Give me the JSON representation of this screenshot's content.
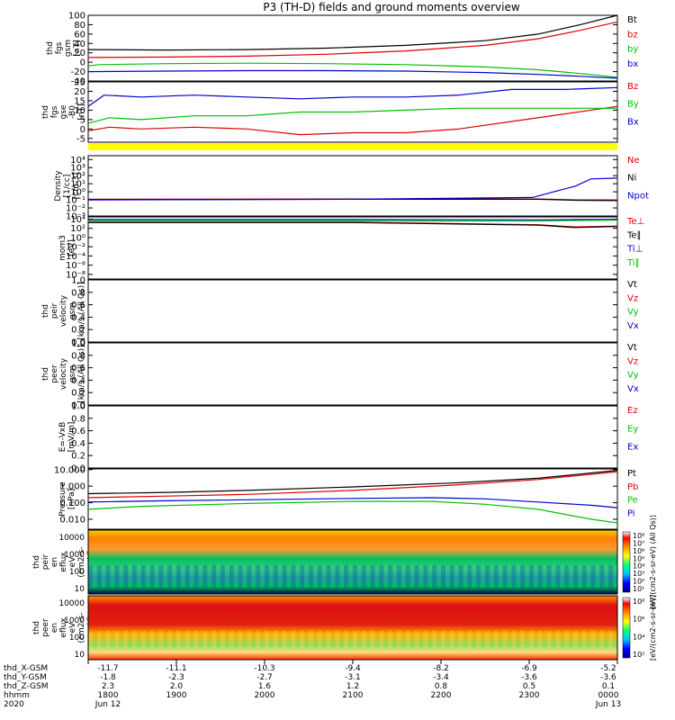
{
  "title": "P3 (TH-D) fields and ground moments overview",
  "chart_data": [
    {
      "type": "line",
      "ylabel": [
        "thd",
        "fgs",
        "gsm",
        "[nT]"
      ],
      "ylim": [
        -40,
        100
      ],
      "yticks": [
        "100",
        "80",
        "60",
        "40",
        "20",
        "0",
        "-20",
        "-40"
      ],
      "yvals": [
        100,
        80,
        60,
        40,
        20,
        0,
        -20,
        -40
      ],
      "series": [
        {
          "name": "Bt",
          "color": "#000000",
          "values": [
            [
              0,
              27
            ],
            [
              0.15,
              26
            ],
            [
              0.3,
              27
            ],
            [
              0.45,
              30
            ],
            [
              0.6,
              36
            ],
            [
              0.75,
              46
            ],
            [
              0.85,
              60
            ],
            [
              0.93,
              80
            ],
            [
              1,
              100
            ]
          ]
        },
        {
          "name": "bz",
          "color": "#e00000",
          "values": [
            [
              0,
              10
            ],
            [
              0.15,
              11
            ],
            [
              0.3,
              13
            ],
            [
              0.45,
              17
            ],
            [
              0.6,
              24
            ],
            [
              0.75,
              36
            ],
            [
              0.85,
              50
            ],
            [
              0.93,
              68
            ],
            [
              1,
              86
            ]
          ]
        },
        {
          "name": "by",
          "color": "#00c000",
          "values": [
            [
              0,
              -8
            ],
            [
              0.02,
              -5
            ],
            [
              0.15,
              -3
            ],
            [
              0.3,
              -2
            ],
            [
              0.45,
              -3
            ],
            [
              0.6,
              -5
            ],
            [
              0.75,
              -10
            ],
            [
              0.85,
              -16
            ],
            [
              0.93,
              -24
            ],
            [
              1,
              -32
            ]
          ]
        },
        {
          "name": "bx",
          "color": "#0000d0",
          "values": [
            [
              0,
              -20
            ],
            [
              0.15,
              -19
            ],
            [
              0.3,
              -18
            ],
            [
              0.45,
              -18
            ],
            [
              0.6,
              -19
            ],
            [
              0.75,
              -22
            ],
            [
              0.85,
              -26
            ],
            [
              0.93,
              -30
            ],
            [
              1,
              -34
            ]
          ]
        }
      ]
    },
    {
      "type": "line",
      "ylabel": [
        "thd",
        "fgs",
        "gse",
        "-B0",
        "[nT]"
      ],
      "ylim": [
        -7,
        25
      ],
      "yticks": [
        "25",
        "20",
        "15",
        "10",
        "5",
        "0",
        "-5"
      ],
      "yvals": [
        25,
        20,
        15,
        10,
        5,
        0,
        -5
      ],
      "series": [
        {
          "name": "Bz",
          "color": "#e00000",
          "values": [
            [
              0,
              -1
            ],
            [
              0.04,
              1
            ],
            [
              0.1,
              0
            ],
            [
              0.2,
              1
            ],
            [
              0.3,
              0
            ],
            [
              0.4,
              -3
            ],
            [
              0.5,
              -2
            ],
            [
              0.6,
              -2
            ],
            [
              0.7,
              0
            ],
            [
              0.8,
              4
            ],
            [
              0.9,
              8
            ],
            [
              1,
              12
            ]
          ]
        },
        {
          "name": "By",
          "color": "#00c000",
          "values": [
            [
              0,
              3
            ],
            [
              0.04,
              6
            ],
            [
              0.1,
              5
            ],
            [
              0.2,
              7
            ],
            [
              0.3,
              7
            ],
            [
              0.4,
              9
            ],
            [
              0.5,
              9
            ],
            [
              0.6,
              10
            ],
            [
              0.7,
              11
            ],
            [
              0.8,
              11
            ],
            [
              0.9,
              11
            ],
            [
              1,
              11
            ]
          ]
        },
        {
          "name": "Bx",
          "color": "#0000d0",
          "values": [
            [
              0,
              12
            ],
            [
              0.03,
              18
            ],
            [
              0.1,
              17
            ],
            [
              0.2,
              18
            ],
            [
              0.3,
              17
            ],
            [
              0.4,
              16
            ],
            [
              0.5,
              17
            ],
            [
              0.6,
              17
            ],
            [
              0.7,
              18
            ],
            [
              0.8,
              21
            ],
            [
              0.9,
              21
            ],
            [
              1,
              22
            ]
          ]
        }
      ]
    },
    {
      "type": "line",
      "ylabel": [
        "Density",
        "[1/cc]",
        "[cm-3]"
      ],
      "scale": "log",
      "ylim": [
        0.001,
        30000
      ],
      "yticks": [
        "10⁴",
        "10³",
        "10²",
        "10¹",
        "10⁰",
        "10⁻¹",
        "10⁻²",
        "10⁻³"
      ],
      "yvals": [
        10000,
        1000,
        100,
        10,
        1,
        0.1,
        0.01,
        0.001
      ],
      "series": [
        {
          "name": "Ne",
          "color": "#e00000",
          "values": [
            [
              0,
              0.12
            ],
            [
              0.5,
              0.13
            ],
            [
              0.85,
              0.13
            ],
            [
              0.92,
              0.1
            ],
            [
              1,
              0.1
            ]
          ]
        },
        {
          "name": "Ni",
          "color": "#000000",
          "values": [
            [
              0,
              0.11
            ],
            [
              0.5,
              0.12
            ],
            [
              0.85,
              0.12
            ],
            [
              0.92,
              0.09
            ],
            [
              1,
              0.08
            ]
          ]
        },
        {
          "name": "Npot",
          "color": "#0000d0",
          "values": [
            [
              0,
              0.1
            ],
            [
              0.5,
              0.12
            ],
            [
              0.84,
              0.2
            ],
            [
              0.88,
              1
            ],
            [
              0.92,
              5
            ],
            [
              0.95,
              40
            ],
            [
              1,
              50
            ]
          ]
        }
      ]
    },
    {
      "type": "line",
      "ylabel": [
        "mom3",
        "[eV]"
      ],
      "scale": "log",
      "ylim": [
        1e-09,
        30000
      ],
      "yticks": [
        "10⁴",
        "10²",
        "10⁰",
        "10⁻²",
        "10⁻⁴",
        "10⁻⁶",
        "10⁻⁸"
      ],
      "yvals": [
        10000,
        100,
        1,
        0.01,
        0.0001,
        1e-06,
        1e-08
      ],
      "series": [
        {
          "name": "Te⊥",
          "color": "#e00000",
          "values": [
            [
              0,
              2000
            ],
            [
              0.5,
              2000
            ],
            [
              0.85,
              600
            ],
            [
              0.92,
              200
            ],
            [
              1,
              300
            ]
          ]
        },
        {
          "name": "Te∥",
          "color": "#000000",
          "values": [
            [
              0,
              1800
            ],
            [
              0.5,
              1800
            ],
            [
              0.85,
              500
            ],
            [
              0.92,
              150
            ],
            [
              1,
              250
            ]
          ]
        },
        {
          "name": "Ti⊥",
          "color": "#0000d0",
          "values": [
            [
              0,
              8000
            ],
            [
              0.5,
              8000
            ],
            [
              0.85,
              7000
            ],
            [
              0.92,
              8000
            ],
            [
              1,
              9000
            ]
          ]
        },
        {
          "name": "Ti∥",
          "color": "#00c000",
          "values": [
            [
              0,
              4000
            ],
            [
              0.5,
              4000
            ],
            [
              0.85,
              4000
            ],
            [
              0.92,
              5000
            ],
            [
              1,
              6000
            ]
          ]
        }
      ]
    },
    {
      "type": "line",
      "ylabel": [
        "thd",
        "peir",
        "velocity",
        "gsm",
        "[km/s (All Qs)]"
      ],
      "ylim": [
        0,
        1
      ],
      "yticks": [
        "1.0",
        "0.8",
        "0.6",
        "0.4",
        "0.2",
        "0.0"
      ],
      "yvals": [
        1,
        0.8,
        0.6,
        0.4,
        0.2,
        0
      ],
      "series": [
        {
          "name": "Vt",
          "color": "#000000",
          "values": []
        },
        {
          "name": "Vz",
          "color": "#e00000",
          "values": []
        },
        {
          "name": "Vy",
          "color": "#00c000",
          "values": []
        },
        {
          "name": "Vx",
          "color": "#0000d0",
          "values": []
        }
      ]
    },
    {
      "type": "line",
      "ylabel": [
        "thd",
        "peer",
        "velocity",
        "gsm",
        "[km/s (All Qs)]"
      ],
      "ylim": [
        0,
        1
      ],
      "yticks": [
        "1.0",
        "0.8",
        "0.6",
        "0.4",
        "0.2",
        "0.0"
      ],
      "yvals": [
        1,
        0.8,
        0.6,
        0.4,
        0.2,
        0
      ],
      "series": [
        {
          "name": "Vt",
          "color": "#000000",
          "values": []
        },
        {
          "name": "Vz",
          "color": "#e00000",
          "values": []
        },
        {
          "name": "Vy",
          "color": "#00c000",
          "values": []
        },
        {
          "name": "Vx",
          "color": "#0000d0",
          "values": []
        }
      ]
    },
    {
      "type": "line",
      "ylabel": [
        "E=-VxB",
        "[mV/m]"
      ],
      "ylim": [
        0,
        1
      ],
      "yticks": [
        "1.0",
        "0.8",
        "0.6",
        "0.4",
        "0.2",
        "0.0"
      ],
      "yvals": [
        1,
        0.8,
        0.6,
        0.4,
        0.2,
        0
      ],
      "series": [
        {
          "name": "Ez",
          "color": "#e00000",
          "values": []
        },
        {
          "name": "Ey",
          "color": "#00c000",
          "values": []
        },
        {
          "name": "Ex",
          "color": "#0000d0",
          "values": []
        }
      ]
    },
    {
      "type": "line",
      "ylabel": [
        "Pressure",
        "[nPa]"
      ],
      "scale": "log",
      "ylim": [
        0.0025,
        11
      ],
      "yticks": [
        "10.000",
        "1.000",
        "0.100",
        "0.010"
      ],
      "yvals": [
        10,
        1,
        0.1,
        0.01
      ],
      "series": [
        {
          "name": "Pt",
          "color": "#000000",
          "values": [
            [
              0,
              0.35
            ],
            [
              0.15,
              0.42
            ],
            [
              0.3,
              0.55
            ],
            [
              0.5,
              0.9
            ],
            [
              0.7,
              1.6
            ],
            [
              0.85,
              3
            ],
            [
              1,
              9
            ]
          ]
        },
        {
          "name": "Pb",
          "color": "#e00000",
          "values": [
            [
              0,
              0.2
            ],
            [
              0.15,
              0.25
            ],
            [
              0.3,
              0.32
            ],
            [
              0.5,
              0.55
            ],
            [
              0.7,
              1.2
            ],
            [
              0.85,
              2.5
            ],
            [
              1,
              7.5
            ]
          ]
        },
        {
          "name": "Pe",
          "color": "#00c000",
          "values": [
            [
              0,
              0.04
            ],
            [
              0.1,
              0.06
            ],
            [
              0.3,
              0.09
            ],
            [
              0.5,
              0.12
            ],
            [
              0.65,
              0.12
            ],
            [
              0.75,
              0.08
            ],
            [
              0.85,
              0.04
            ],
            [
              0.95,
              0.01
            ],
            [
              1,
              0.006
            ]
          ]
        },
        {
          "name": "Pi",
          "color": "#0000d0",
          "values": [
            [
              0,
              0.11
            ],
            [
              0.15,
              0.13
            ],
            [
              0.3,
              0.15
            ],
            [
              0.5,
              0.18
            ],
            [
              0.65,
              0.2
            ],
            [
              0.75,
              0.17
            ],
            [
              0.85,
              0.11
            ],
            [
              0.95,
              0.07
            ],
            [
              1,
              0.05
            ]
          ]
        }
      ]
    },
    {
      "type": "heatmap",
      "ylabel": [
        "thd",
        "peir",
        "en",
        "eflux",
        "eV",
        "(cm2-s-",
        "sr-eV)"
      ],
      "yticks": [
        "10000",
        "1000",
        "100",
        "10"
      ],
      "zlabel": "[eV/(cm2-s-sr-eV) (All Qs)]",
      "zticks": [
        "10⁸",
        "10⁷",
        "10⁶",
        "10⁵",
        "10⁴",
        "10³",
        "10²",
        "10¹"
      ]
    },
    {
      "type": "heatmap",
      "ylabel": [
        "thd",
        "peer",
        "en",
        "eflux",
        "eV",
        "(cm2-s-",
        "sr-eV)"
      ],
      "yticks": [
        "10000",
        "1000",
        "100",
        "10"
      ],
      "zlabel": "[eV/(cm2-s-sr-eV)]",
      "zticks": [
        "10⁸",
        "10⁶",
        "10⁴",
        "10²"
      ]
    }
  ],
  "xaxis": {
    "row_labels": [
      "thd_X-GSM",
      "thd_Y-GSM",
      "thd_Z-GSM",
      "hhmm",
      "2020"
    ],
    "columns": [
      {
        "values": [
          "-11.7",
          "-1.8",
          "2.3",
          "1800",
          "Jun 12"
        ]
      },
      {
        "values": [
          "-11.1",
          "-2.3",
          "2.0",
          "1900",
          ""
        ]
      },
      {
        "values": [
          "-10.3",
          "-2.7",
          "1.6",
          "2000",
          ""
        ]
      },
      {
        "values": [
          "-9.4",
          "-3.1",
          "1.2",
          "2100",
          ""
        ]
      },
      {
        "values": [
          "-8.2",
          "-3.4",
          "0.8",
          "2200",
          ""
        ]
      },
      {
        "values": [
          "-6.9",
          "-3.6",
          "0.5",
          "2300",
          ""
        ]
      },
      {
        "values": [
          "-5.2",
          "-3.6",
          "0.1",
          "0000",
          "Jun 13"
        ]
      }
    ]
  },
  "colors": {
    "black": "#000000",
    "red": "#e00000",
    "green": "#00c000",
    "blue": "#0000d0",
    "yellow": "#ffff00"
  }
}
